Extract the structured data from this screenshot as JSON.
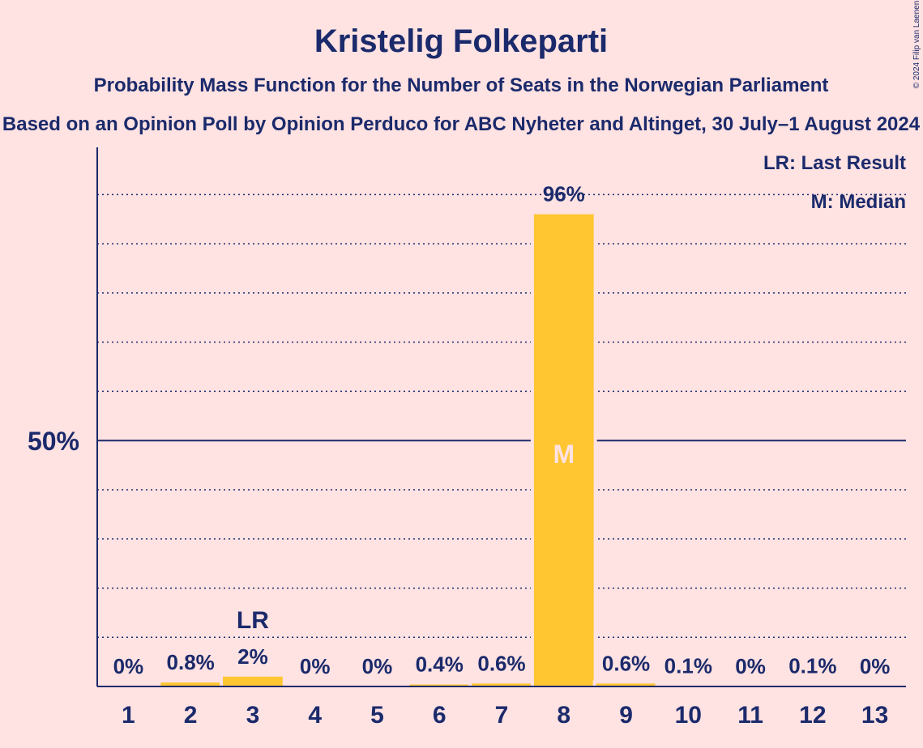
{
  "chart_data": {
    "type": "bar",
    "title": "Kristelig Folkeparti",
    "subtitle": "Probability Mass Function for the Number of Seats in the Norwegian Parliament",
    "subtitle2": "Based on an Opinion Poll by Opinion Perduco for ABC Nyheter and Altinget, 30 July–1 August 2024",
    "categories": [
      "1",
      "2",
      "3",
      "4",
      "5",
      "6",
      "7",
      "8",
      "9",
      "10",
      "11",
      "12",
      "13"
    ],
    "values": [
      0,
      0.8,
      2,
      0,
      0,
      0.4,
      0.6,
      96,
      0.6,
      0.1,
      0,
      0.1,
      0
    ],
    "labels": [
      "0%",
      "0.8%",
      "2%",
      "0%",
      "0%",
      "0.4%",
      "0.6%",
      "96%",
      "0.6%",
      "0.1%",
      "0%",
      "0.1%",
      "0%"
    ],
    "ylim": [
      0,
      105
    ],
    "ytick_label": "50%",
    "ytick_value": 50,
    "grid": true,
    "last_result": {
      "category": "3",
      "marker": "LR"
    },
    "median": {
      "category": "8",
      "marker": "M"
    },
    "legend": [
      "LR: Last Result",
      "M: Median"
    ],
    "legend_position": "top-right",
    "bar_color": "#FFC632",
    "copyright": "© 2024 Filip van Laenen"
  }
}
